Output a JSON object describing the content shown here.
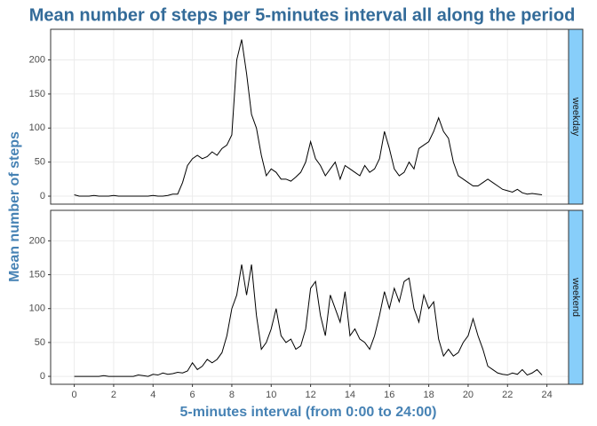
{
  "chart_data": {
    "type": "line",
    "title": "Mean number of steps per 5-minutes interval all along the period",
    "x_label": "5-minutes interval (from 0:00 to 24:00)",
    "y_label": "Mean number of steps",
    "x": [
      0,
      0.25,
      0.5,
      0.75,
      1,
      1.25,
      1.5,
      1.75,
      2,
      2.25,
      2.5,
      2.75,
      3,
      3.25,
      3.5,
      3.75,
      4,
      4.25,
      4.5,
      4.75,
      5,
      5.25,
      5.5,
      5.75,
      6,
      6.25,
      6.5,
      6.75,
      7,
      7.25,
      7.5,
      7.75,
      8,
      8.25,
      8.5,
      8.75,
      9,
      9.25,
      9.5,
      9.75,
      10,
      10.25,
      10.5,
      10.75,
      11,
      11.25,
      11.5,
      11.75,
      12,
      12.25,
      12.5,
      12.75,
      13,
      13.25,
      13.5,
      13.75,
      14,
      14.25,
      14.5,
      14.75,
      15,
      15.25,
      15.5,
      15.75,
      16,
      16.25,
      16.5,
      16.75,
      17,
      17.25,
      17.5,
      17.75,
      18,
      18.25,
      18.5,
      18.75,
      19,
      19.25,
      19.5,
      19.75,
      20,
      20.25,
      20.5,
      20.75,
      21,
      21.25,
      21.5,
      21.75,
      22,
      22.25,
      22.5,
      22.75,
      23,
      23.25,
      23.5,
      23.75
    ],
    "xlim": [
      -1.2,
      25.1
    ],
    "xticks": [
      0,
      2,
      4,
      6,
      8,
      10,
      12,
      14,
      16,
      18,
      20,
      22,
      24
    ],
    "ylim": [
      -11.7,
      245
    ],
    "yticks": [
      0,
      50,
      100,
      150,
      200
    ],
    "grid": true,
    "strip_color": "#87cefa",
    "series": [
      {
        "name": "weekday",
        "color": "#000000",
        "values": [
          2,
          0,
          0,
          0,
          1,
          0,
          0,
          0,
          1,
          0,
          0,
          0,
          0,
          0,
          0,
          0,
          1,
          0,
          0,
          1,
          3,
          3,
          20,
          45,
          55,
          60,
          55,
          58,
          65,
          60,
          70,
          75,
          90,
          200,
          230,
          180,
          120,
          100,
          60,
          30,
          40,
          35,
          25,
          25,
          22,
          28,
          35,
          50,
          80,
          55,
          45,
          30,
          40,
          50,
          25,
          45,
          40,
          35,
          30,
          45,
          35,
          40,
          55,
          95,
          70,
          40,
          30,
          35,
          50,
          40,
          70,
          75,
          80,
          95,
          115,
          95,
          85,
          50,
          30,
          25,
          20,
          15,
          15,
          20,
          25,
          20,
          15,
          10,
          8,
          6,
          10,
          5,
          3,
          4,
          3,
          2
        ]
      },
      {
        "name": "weekend",
        "color": "#000000",
        "values": [
          0,
          0,
          0,
          0,
          0,
          0,
          1,
          0,
          0,
          0,
          0,
          0,
          0,
          2,
          1,
          0,
          3,
          2,
          5,
          3,
          4,
          6,
          5,
          8,
          20,
          10,
          15,
          25,
          20,
          25,
          35,
          60,
          100,
          120,
          165,
          120,
          165,
          90,
          40,
          50,
          70,
          100,
          60,
          50,
          55,
          40,
          45,
          70,
          130,
          140,
          90,
          60,
          120,
          100,
          80,
          125,
          60,
          70,
          55,
          50,
          40,
          60,
          90,
          125,
          100,
          130,
          110,
          140,
          145,
          100,
          80,
          120,
          100,
          110,
          55,
          30,
          40,
          30,
          35,
          50,
          60,
          85,
          60,
          40,
          15,
          10,
          5,
          3,
          2,
          5,
          3,
          10,
          2,
          5,
          10,
          2
        ]
      }
    ]
  }
}
